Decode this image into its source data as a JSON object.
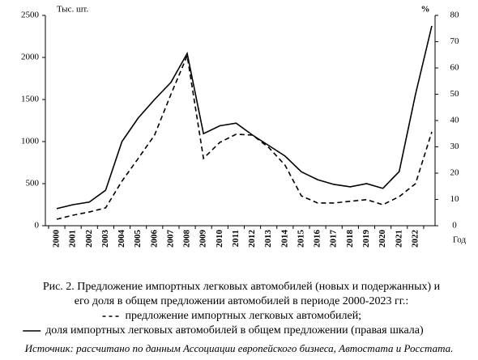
{
  "chart_data": {
    "type": "line",
    "y_label": "Тыс. шт.",
    "y2_label": "%",
    "x_label": "Год",
    "categories": [
      "2000",
      "2001",
      "2002",
      "2003",
      "2004",
      "2005",
      "2006",
      "2007",
      "2008",
      "2009",
      "2010",
      "2011",
      "2012",
      "2013",
      "2014",
      "2015",
      "2016",
      "2017",
      "2018",
      "2019",
      "2020",
      "2021",
      "2022",
      null
    ],
    "series": [
      {
        "name": "предложение импортных легковых автомобилей;",
        "color": "#000",
        "dash": true,
        "values": [
          77,
          125,
          163,
          212,
          530,
          800,
          1077,
          1560,
          2020,
          800,
          990,
          1087,
          1077,
          930,
          720,
          355,
          270,
          270,
          290,
          310,
          250,
          345,
          500,
          1115
        ]
      },
      {
        "name": "доля импортных легковых автомобилей в общем предложении (правая шкала)",
        "color": "#000",
        "dash": false,
        "axis": "y2",
        "values": [
          6.5,
          8,
          9,
          13.5,
          32,
          41,
          48,
          54.5,
          65.5,
          35,
          38,
          39,
          34.5,
          30.5,
          26.5,
          20.5,
          17.5,
          15.7,
          14.8,
          16,
          14.2,
          20.6,
          50,
          76
        ]
      }
    ],
    "ylim": [
      0,
      2500
    ],
    "yticks": [
      0,
      500,
      1000,
      1500,
      2000,
      2500
    ],
    "y2lim": [
      0,
      80
    ],
    "y2ticks": [
      0,
      10,
      20,
      30,
      40,
      50,
      60,
      70,
      80
    ],
    "caption": [
      "Рис. 2. Предложение импортных легковых автомобилей (новых и подержанных) и",
      "его доля в общем предложении автомобилей в периоде 2000-2023 гг.:"
    ],
    "source": "Источник: рассчитано по данным Ассоциации европейского бизнеса, Автостата и Росстата."
  }
}
